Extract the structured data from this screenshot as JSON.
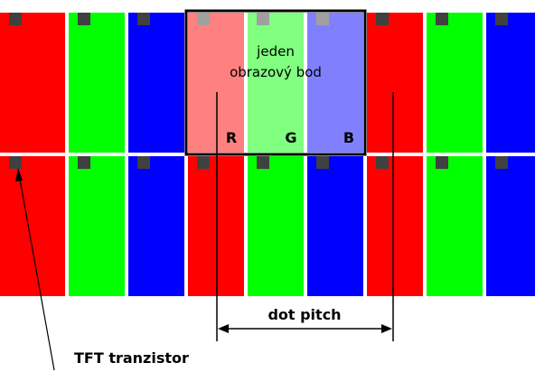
{
  "pixel_label_line1": "jeden",
  "pixel_label_line2": "obrazový bod",
  "channel_labels": [
    "R",
    "G",
    "B"
  ],
  "dot_pitch_label": "dot pitch",
  "transistor_label": "TFT tranzistor",
  "colors": {
    "red": "#ff0000",
    "green": "#00ff00",
    "blue": "#0000ff",
    "red_highlight": "#ff8080",
    "green_highlight": "#80ff80",
    "blue_highlight": "#8080ff",
    "transistor": "#404040",
    "transistor_highlight": "#a0a0a0",
    "outline": "#000000",
    "background": "#ffffff"
  },
  "grid": {
    "rows": 2,
    "columns": 9,
    "column_colors": [
      "red",
      "green",
      "blue",
      "red",
      "green",
      "blue",
      "red",
      "green",
      "blue"
    ],
    "highlighted_row": 0,
    "highlighted_columns": [
      3,
      4,
      5
    ]
  }
}
